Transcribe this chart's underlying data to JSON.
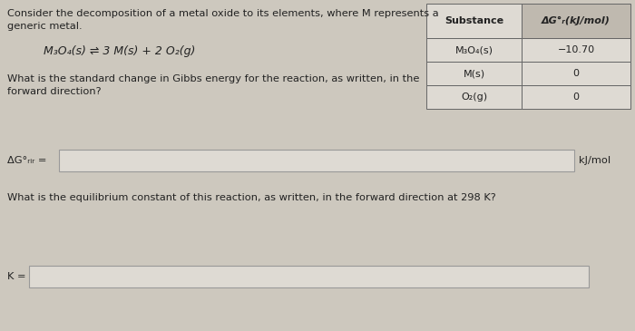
{
  "bg_color": "#cdc8be",
  "title_line1": "Consider the decomposition of a metal oxide to its elements, where M represents a",
  "title_line2": "generic metal.",
  "reaction": "M₃O₄(s) ⇌ 3 M(s) + 2 O₂(g)",
  "question1_line1": "What is the standard change in Gibbs energy for the reaction, as written, in the",
  "question1_line2": "forward direction?",
  "question2": "What is the equilibrium constant of this reaction, as written, in the forward direction at 298 K?",
  "answer_label1": "ΔG°ᵣᵢᵣ =",
  "answer_label2": "K =",
  "unit_label": "kJ/mol",
  "table_header_col1": "Substance",
  "table_header_col2": "ΔG°ᵣ(kJ/mol)",
  "table_rows": [
    [
      "M₃O₄(s)",
      "−10.70"
    ],
    [
      "M(s)",
      "0"
    ],
    [
      "O₂(g)",
      "0"
    ]
  ],
  "table_bg": "#dedad3",
  "table_header2_bg": "#bfb9af",
  "input_box_color": "#dedad3",
  "input_box_edge": "#999999",
  "font_size_main": 8.2,
  "font_size_reaction": 9.0,
  "font_size_table": 8.0
}
